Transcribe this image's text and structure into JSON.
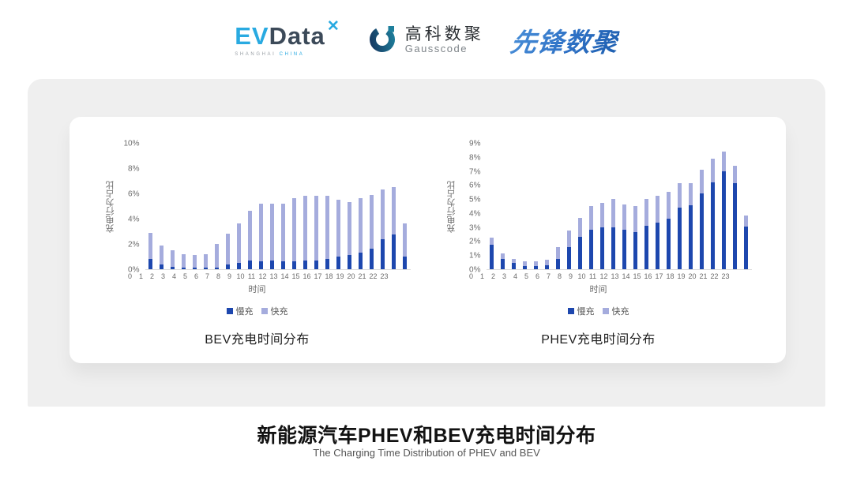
{
  "header": {
    "evdata": {
      "ev": "EV",
      "data": "Data",
      "x_mark": "✕",
      "sub_left": "SHANGHAI",
      "sub_right": "CHINA"
    },
    "gausscode": {
      "cn": "高科数聚",
      "en": "Gausscode"
    },
    "xianfeng": "先锋数聚"
  },
  "footer": {
    "title": "新能源汽车PHEV和BEV充电时间分布",
    "subtitle": "The Charging Time Distribution of PHEV and BEV"
  },
  "colors": {
    "slow_charge": "#1d47ae",
    "fast_charge": "#a5acdd",
    "panel_gray": "#efefef",
    "brand_light_blue": "#29aae1",
    "brand_dark_slate": "#3c4a59",
    "gausscode_navy": "#16365f",
    "gausscode_teal": "#1e7f9c",
    "xianfeng_blue": "#2e71c5"
  },
  "chart_data": [
    {
      "type": "bar",
      "stacked": true,
      "title": "BEV充电时间分布",
      "xlabel": "时间",
      "ylabel": "充电行为占比",
      "ylim": [
        0,
        10
      ],
      "ytick_step": 2,
      "ytick_suffix": "%",
      "grid": false,
      "legend_position": "bottom",
      "categories": [
        0,
        1,
        2,
        3,
        4,
        5,
        6,
        7,
        8,
        9,
        10,
        11,
        12,
        13,
        14,
        15,
        16,
        17,
        18,
        19,
        20,
        21,
        22,
        23
      ],
      "series": [
        {
          "name": "慢充",
          "color": "#1d47ae",
          "values": [
            0.8,
            0.35,
            0.2,
            0.1,
            0.1,
            0.1,
            0.15,
            0.35,
            0.5,
            0.7,
            0.65,
            0.7,
            0.6,
            0.65,
            0.7,
            0.7,
            0.8,
            1.0,
            1.1,
            1.3,
            1.6,
            2.4,
            2.75,
            1.0
          ]
        },
        {
          "name": "快充",
          "color": "#a5acdd",
          "values": [
            2.1,
            1.55,
            1.3,
            1.1,
            1.0,
            1.1,
            1.85,
            2.45,
            3.1,
            3.9,
            4.55,
            4.5,
            4.6,
            4.95,
            5.1,
            5.1,
            5.0,
            4.5,
            4.2,
            4.3,
            4.3,
            3.9,
            3.75,
            2.6
          ]
        }
      ]
    },
    {
      "type": "bar",
      "stacked": true,
      "title": "PHEV充电时间分布",
      "xlabel": "时间",
      "ylabel": "充电行为占比",
      "ylim": [
        0,
        9
      ],
      "ytick_step": 1,
      "ytick_suffix": "%",
      "grid": false,
      "legend_position": "bottom",
      "categories": [
        0,
        1,
        2,
        3,
        4,
        5,
        6,
        7,
        8,
        9,
        10,
        11,
        12,
        13,
        14,
        15,
        16,
        17,
        18,
        19,
        20,
        21,
        22,
        23
      ],
      "series": [
        {
          "name": "慢充",
          "color": "#1d47ae",
          "values": [
            1.75,
            0.75,
            0.45,
            0.25,
            0.25,
            0.3,
            0.75,
            1.6,
            2.3,
            2.8,
            3.0,
            3.0,
            2.8,
            2.65,
            3.1,
            3.3,
            3.6,
            4.4,
            4.55,
            5.4,
            6.2,
            7.0,
            6.15,
            3.05
          ]
        },
        {
          "name": "快充",
          "color": "#a5acdd",
          "values": [
            0.5,
            0.4,
            0.3,
            0.3,
            0.3,
            0.4,
            0.85,
            1.15,
            1.35,
            1.7,
            1.75,
            2.0,
            1.8,
            1.85,
            1.9,
            1.95,
            1.9,
            1.75,
            1.6,
            1.7,
            1.7,
            1.4,
            1.2,
            0.8
          ]
        }
      ]
    }
  ]
}
